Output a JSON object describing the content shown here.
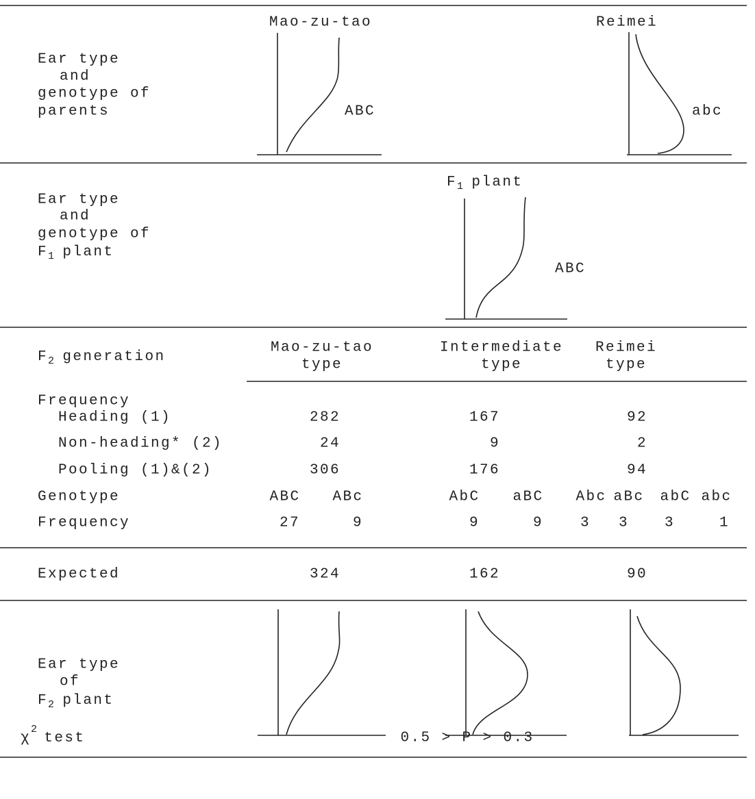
{
  "parents": {
    "label_lines": [
      "Ear type",
      "and",
      "genotype of",
      "parents"
    ],
    "left": {
      "name": "Mao-zu-tao",
      "genotype": "ABC"
    },
    "right": {
      "name": "Reimei",
      "genotype": "abc"
    }
  },
  "f1": {
    "label_lines": [
      "Ear type",
      "and",
      "genotype of"
    ],
    "label_last": {
      "base": "F",
      "sub": "1",
      "rest": "plant"
    },
    "plant": {
      "base": "F",
      "sub": "1",
      "rest": "plant"
    },
    "genotype": "ABC"
  },
  "f2": {
    "heading": {
      "base": "F",
      "sub": "2",
      "rest": "generation"
    },
    "columns": [
      [
        "Mao-zu-tao",
        "type"
      ],
      [
        "Intermediate",
        "type"
      ],
      [
        "Reimei",
        "type"
      ]
    ],
    "frequency_label": "Frequency",
    "rows": [
      {
        "label": "Heading (1)",
        "values": [
          282,
          167,
          92
        ]
      },
      {
        "label": "Non-heading* (2)",
        "values": [
          24,
          9,
          2
        ]
      },
      {
        "label": "Pooling (1)&(2)",
        "values": [
          306,
          176,
          94
        ]
      }
    ],
    "genotype_label": "Genotype",
    "genotypes": [
      "ABC",
      "ABc",
      "AbC",
      "aBC",
      "Abc",
      "aBc",
      "abC",
      "abc"
    ],
    "genotype_frequency_label": "Frequency",
    "genotype_frequencies": [
      27,
      9,
      9,
      9,
      3,
      3,
      3,
      1
    ]
  },
  "expected": {
    "label": "Expected",
    "values": [
      324,
      162,
      90
    ]
  },
  "f2_plant": {
    "label_lines": [
      "Ear type",
      "of"
    ],
    "label_last": {
      "base": "F",
      "sub": "2",
      "rest": "plant"
    }
  },
  "chi_square": {
    "label": {
      "base": "χ",
      "sup": "2",
      "rest": "test"
    },
    "result": "0.5 > P > 0.3"
  }
}
